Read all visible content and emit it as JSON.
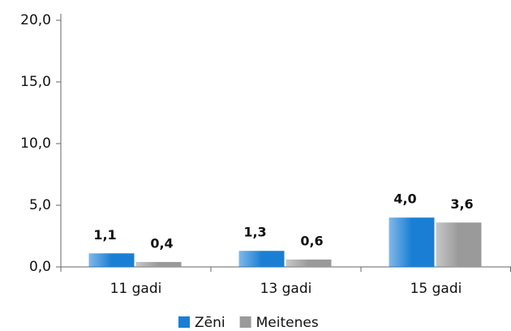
{
  "chart_data": {
    "type": "bar",
    "categories": [
      "11 gadi",
      "13 gadi",
      "15 gadi"
    ],
    "series": [
      {
        "name": "Zēni",
        "color": "#1a7fd4",
        "values": [
          1.1,
          1.3,
          4.0
        ],
        "value_labels": [
          "1,1",
          "1,3",
          "4,0"
        ]
      },
      {
        "name": "Meitenes",
        "color": "#9a9a9a",
        "values": [
          0.4,
          0.6,
          3.6
        ],
        "value_labels": [
          "0,4",
          "0,6",
          "3,6"
        ]
      }
    ],
    "ylim": [
      0,
      20
    ],
    "yticks": [
      {
        "value": 0,
        "label": "0,0"
      },
      {
        "value": 5,
        "label": "5,0"
      },
      {
        "value": 10,
        "label": "10,0"
      },
      {
        "value": 15,
        "label": "15,0"
      },
      {
        "value": 20,
        "label": "20,0"
      }
    ],
    "grid": false,
    "legend": "bottom"
  }
}
